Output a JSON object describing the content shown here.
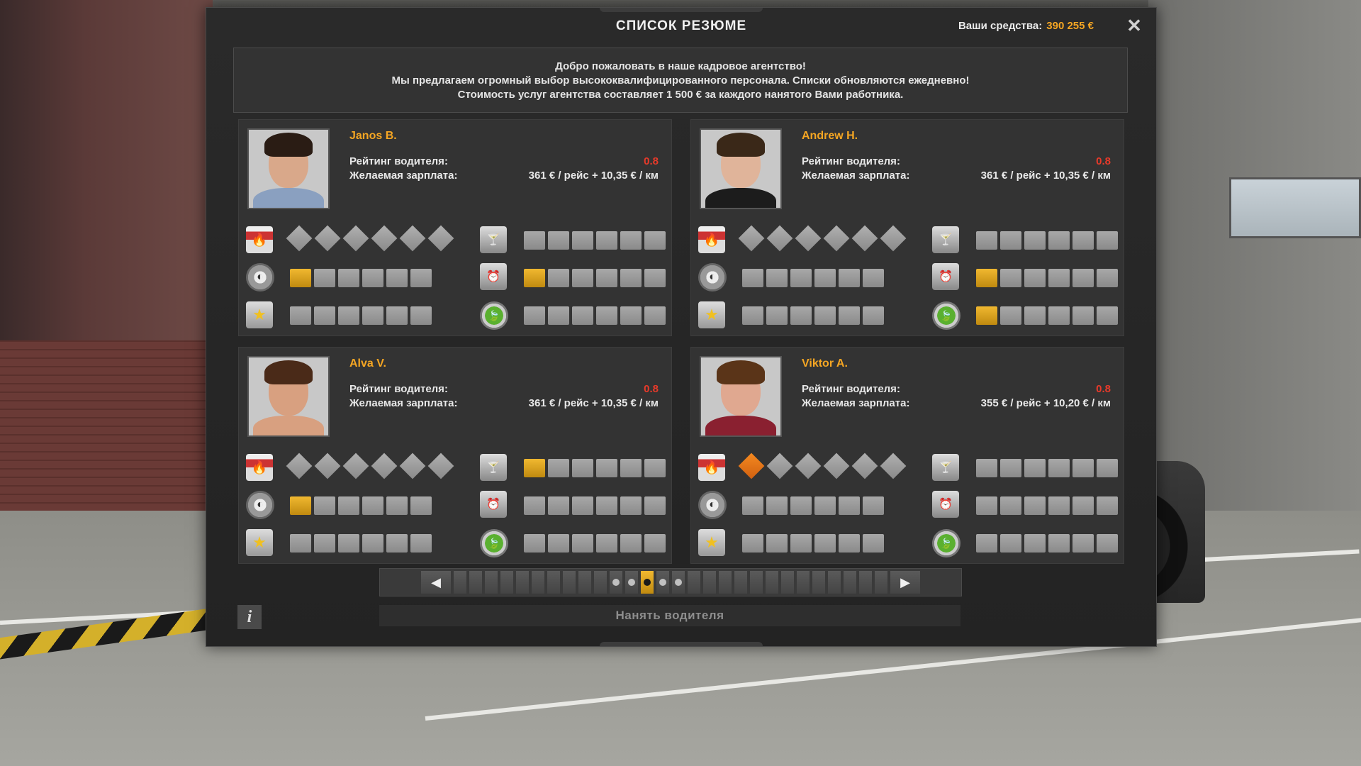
{
  "window": {
    "title": "СПИСОК РЕЗЮМЕ",
    "funds_label": "Ваши средства:",
    "funds_amount": "390 255 €",
    "close_icon": "close-icon"
  },
  "welcome": {
    "line1": "Добро пожаловать в наше кадровое агентство!",
    "line2": "Мы предлагаем огромный выбор высококвалифицированного персонала. Списки обновляются ежедневно!",
    "line3": "Стоимость услуг агентства составляет 1 500 € за каждого нанятого Вами работника."
  },
  "labels": {
    "rating": "Рейтинг водителя:",
    "salary": "Желаемая зарплата:"
  },
  "candidates": [
    {
      "name": "Janos B.",
      "rating": "0.8",
      "salary": "361 € / рейс + 10,35 € / км",
      "skills": {
        "adr": 0,
        "long_distance": 1,
        "high_value": 0,
        "fragile": 0,
        "just_in_time": 1,
        "eco": 0
      },
      "portrait": {
        "skin": "#d9a88a",
        "hair": "#2a1c14",
        "shirt": "#8aa0c0",
        "bg": "#c8c8c8"
      }
    },
    {
      "name": "Andrew H.",
      "rating": "0.8",
      "salary": "361 € / рейс + 10,35 € / км",
      "skills": {
        "adr": 0,
        "long_distance": 0,
        "high_value": 0,
        "fragile": 0,
        "just_in_time": 1,
        "eco": 1
      },
      "portrait": {
        "skin": "#e0b49a",
        "hair": "#3a2818",
        "shirt": "#1c1c1c",
        "bg": "#c8c8c8"
      }
    },
    {
      "name": "Alva V.",
      "rating": "0.8",
      "salary": "361 € / рейс + 10,35 € / км",
      "skills": {
        "adr": 0,
        "long_distance": 1,
        "high_value": 0,
        "fragile": 1,
        "just_in_time": 0,
        "eco": 0
      },
      "portrait": {
        "skin": "#d8a080",
        "hair": "#4a2a18",
        "shirt": "#d8a080",
        "bg": "#c8c8c8"
      }
    },
    {
      "name": "Viktor A.",
      "rating": "0.8",
      "salary": "355 € / рейс + 10,20 € / км",
      "skills": {
        "adr": 1,
        "long_distance": 0,
        "high_value": 0,
        "fragile": 0,
        "just_in_time": 0,
        "eco": 0
      },
      "portrait": {
        "skin": "#e0a890",
        "hair": "#5a3418",
        "shirt": "#8a2030",
        "bg": "#c8c8c8"
      }
    }
  ],
  "pager": {
    "total": 28,
    "active": 13,
    "prev_icon": "arrow-left-icon",
    "next_icon": "arrow-right-icon"
  },
  "hire_button": "Нанять водителя",
  "info_button": "i",
  "colors": {
    "accent": "#f5a623",
    "rating": "#e83a2a",
    "skill_on": "#f0b830",
    "adr_on": "#f58a20"
  }
}
